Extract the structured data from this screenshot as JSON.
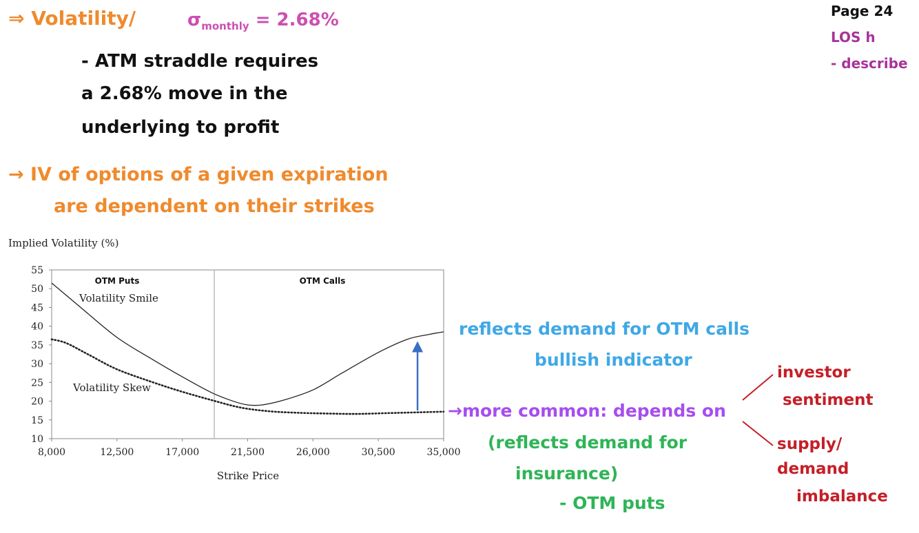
{
  "header": {
    "arrow": "⇒",
    "volatility_label": "Volatility/",
    "sigma": "σ",
    "sigma_sub": "monthly",
    "sigma_value": "= 2.68%"
  },
  "page_ref": {
    "page": "Page 24",
    "los": "LOS h",
    "describe": "- describe"
  },
  "straddle_note": {
    "line1": "- ATM straddle requires",
    "line2": "a 2.68% move in the",
    "line3": "underlying to profit"
  },
  "iv_note": {
    "arrow": "→",
    "line1": "IV of options of a given expiration",
    "line2": "are dependent on their strikes"
  },
  "annotations": {
    "calls_line1": "reflects demand for OTM calls",
    "calls_line2": "bullish indicator",
    "common_arrow": "→",
    "common": "more common: depends on",
    "insurance_line1": "(reflects demand for",
    "insurance_line2": "insurance)",
    "otm_puts": "- OTM puts",
    "investor": "investor",
    "sentiment": "sentiment",
    "supply": "supply/",
    "demand": "demand",
    "imbalance": "imbalance"
  },
  "colors": {
    "orange": "#ef8a2d",
    "magenta": "#cc4fb2",
    "blue": "#3fa8e6",
    "violet": "#a64df0",
    "green": "#2fb457",
    "red": "#c41f28",
    "arrow_blue": "#3b6fc4"
  },
  "chart_data": {
    "type": "line",
    "ylabel": "Implied Volatility (%)",
    "xlabel": "Strike Price",
    "xlim": [
      8000,
      35000
    ],
    "ylim": [
      10,
      55
    ],
    "x_ticks": [
      8000,
      12500,
      17000,
      21500,
      26000,
      30500,
      35000
    ],
    "x_tick_labels": [
      "8,000",
      "12,500",
      "17,000",
      "21,500",
      "26,000",
      "30,500",
      "35,000"
    ],
    "y_ticks": [
      10,
      15,
      20,
      25,
      30,
      35,
      40,
      45,
      50,
      55
    ],
    "y_tick_labels": [
      "10",
      "15",
      "20",
      "25",
      "30",
      "35",
      "40",
      "45",
      "50",
      "55"
    ],
    "divider_x": 19200,
    "region_labels": [
      "OTM Puts",
      "OTM Calls"
    ],
    "series": [
      {
        "name": "Volatility Smile",
        "style": "solid",
        "x": [
          8000,
          10000,
          12500,
          15000,
          17000,
          19000,
          20500,
          21500,
          22500,
          24000,
          26000,
          28000,
          30500,
          32500,
          34000,
          35000
        ],
        "y": [
          51.5,
          45,
          37,
          31,
          26.5,
          22.3,
          20,
          19,
          19,
          20.3,
          23,
          27.5,
          33,
          36.5,
          37.8,
          38.5
        ]
      },
      {
        "name": "Volatility Skew",
        "style": "dotted",
        "x": [
          8000,
          9000,
          10500,
          12500,
          15000,
          17000,
          19000,
          21000,
          23000,
          25000,
          27000,
          29000,
          31000,
          33000,
          35000
        ],
        "y": [
          36.5,
          35.5,
          32.5,
          28.5,
          25,
          22.5,
          20.3,
          18.3,
          17.3,
          16.9,
          16.7,
          16.6,
          16.8,
          17.0,
          17.2
        ]
      }
    ],
    "arrow": {
      "x": 33200,
      "y_from": 17.5,
      "y_to": 36
    }
  }
}
